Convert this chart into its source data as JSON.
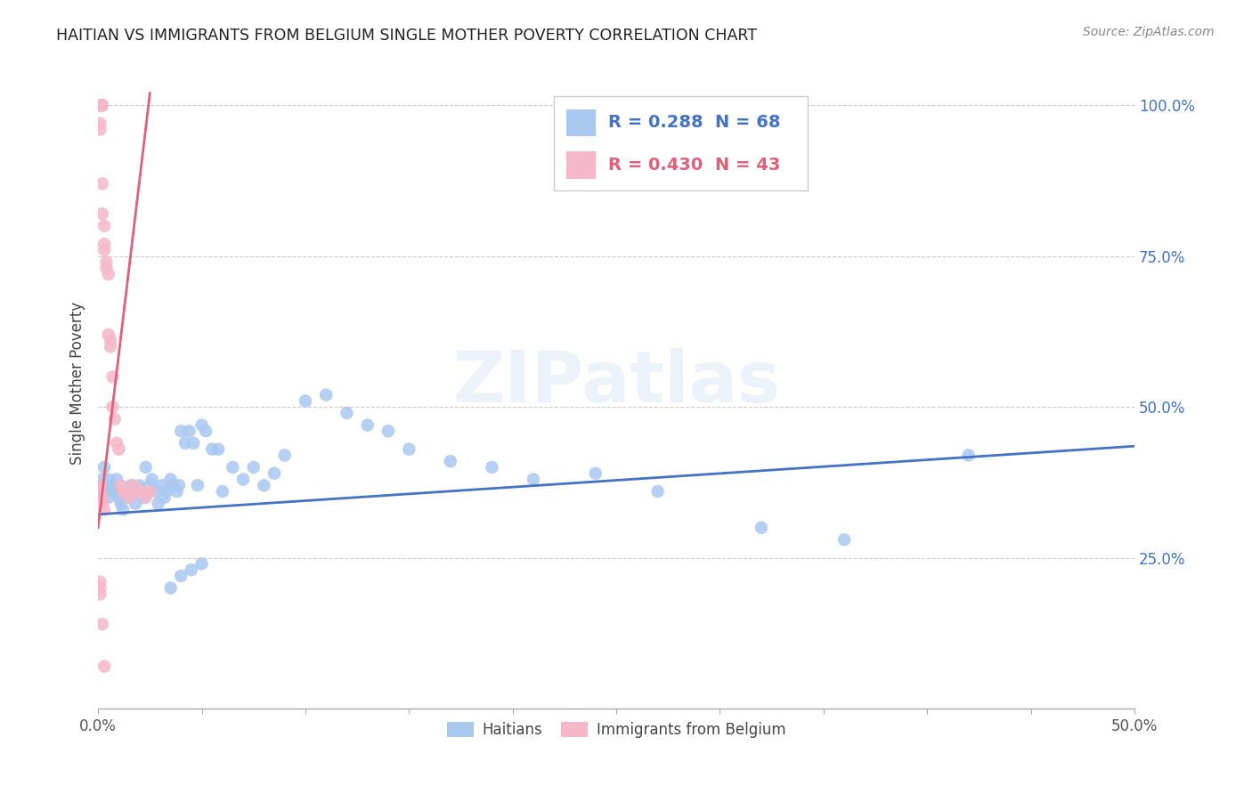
{
  "title": "HAITIAN VS IMMIGRANTS FROM BELGIUM SINGLE MOTHER POVERTY CORRELATION CHART",
  "source": "Source: ZipAtlas.com",
  "ylabel": "Single Mother Poverty",
  "right_yticks": [
    "100.0%",
    "75.0%",
    "50.0%",
    "25.0%"
  ],
  "right_ytick_vals": [
    1.0,
    0.75,
    0.5,
    0.25
  ],
  "watermark": "ZIPatlas",
  "legend_blue_R": "R = 0.288",
  "legend_blue_N": "N = 68",
  "legend_pink_R": "R = 0.430",
  "legend_pink_N": "N = 43",
  "legend_label_blue": "Haitians",
  "legend_label_pink": "Immigrants from Belgium",
  "blue_color": "#A8C8F0",
  "pink_color": "#F5B8C8",
  "blue_line_color": "#4472C4",
  "pink_line_color": "#E0607A",
  "blue_scatter_x": [
    0.001,
    0.002,
    0.003,
    0.003,
    0.004,
    0.005,
    0.005,
    0.006,
    0.007,
    0.008,
    0.009,
    0.01,
    0.011,
    0.012,
    0.013,
    0.015,
    0.016,
    0.017,
    0.018,
    0.02,
    0.021,
    0.022,
    0.023,
    0.025,
    0.026,
    0.028,
    0.029,
    0.031,
    0.032,
    0.033,
    0.035,
    0.036,
    0.038,
    0.039,
    0.04,
    0.042,
    0.044,
    0.046,
    0.048,
    0.05,
    0.052,
    0.055,
    0.058,
    0.06,
    0.065,
    0.07,
    0.075,
    0.08,
    0.085,
    0.09,
    0.1,
    0.11,
    0.12,
    0.13,
    0.14,
    0.15,
    0.17,
    0.19,
    0.21,
    0.24,
    0.27,
    0.32,
    0.36,
    0.42,
    0.035,
    0.04,
    0.045,
    0.05
  ],
  "blue_scatter_y": [
    0.37,
    0.38,
    0.36,
    0.4,
    0.37,
    0.35,
    0.38,
    0.36,
    0.37,
    0.36,
    0.38,
    0.35,
    0.34,
    0.33,
    0.36,
    0.35,
    0.37,
    0.36,
    0.34,
    0.37,
    0.36,
    0.35,
    0.4,
    0.37,
    0.38,
    0.36,
    0.34,
    0.37,
    0.35,
    0.36,
    0.38,
    0.37,
    0.36,
    0.37,
    0.46,
    0.44,
    0.46,
    0.44,
    0.37,
    0.47,
    0.46,
    0.43,
    0.43,
    0.36,
    0.4,
    0.38,
    0.4,
    0.37,
    0.39,
    0.42,
    0.51,
    0.52,
    0.49,
    0.47,
    0.46,
    0.43,
    0.41,
    0.4,
    0.38,
    0.39,
    0.36,
    0.3,
    0.28,
    0.42,
    0.2,
    0.22,
    0.23,
    0.24
  ],
  "pink_scatter_x": [
    0.001,
    0.001,
    0.001,
    0.001,
    0.001,
    0.001,
    0.002,
    0.002,
    0.002,
    0.002,
    0.003,
    0.003,
    0.003,
    0.004,
    0.004,
    0.005,
    0.005,
    0.006,
    0.006,
    0.007,
    0.007,
    0.008,
    0.009,
    0.01,
    0.011,
    0.012,
    0.013,
    0.015,
    0.017,
    0.019,
    0.021,
    0.023,
    0.025,
    0.001,
    0.001,
    0.002,
    0.002,
    0.003,
    0.001,
    0.001,
    0.001,
    0.002,
    0.003
  ],
  "pink_scatter_y": [
    1.0,
    1.0,
    1.0,
    1.0,
    0.97,
    0.96,
    1.0,
    1.0,
    0.87,
    0.82,
    0.8,
    0.77,
    0.76,
    0.74,
    0.73,
    0.72,
    0.62,
    0.61,
    0.6,
    0.55,
    0.5,
    0.48,
    0.44,
    0.43,
    0.37,
    0.36,
    0.36,
    0.35,
    0.37,
    0.36,
    0.36,
    0.35,
    0.36,
    0.37,
    0.36,
    0.35,
    0.34,
    0.33,
    0.21,
    0.2,
    0.19,
    0.14,
    0.07
  ],
  "xlim": [
    0.0,
    0.5
  ],
  "ylim": [
    0.0,
    1.08
  ],
  "blue_trend_x": [
    0.0,
    0.5
  ],
  "blue_trend_y": [
    0.322,
    0.435
  ],
  "pink_trend_x": [
    0.0,
    0.025
  ],
  "pink_trend_y": [
    0.3,
    1.02
  ]
}
